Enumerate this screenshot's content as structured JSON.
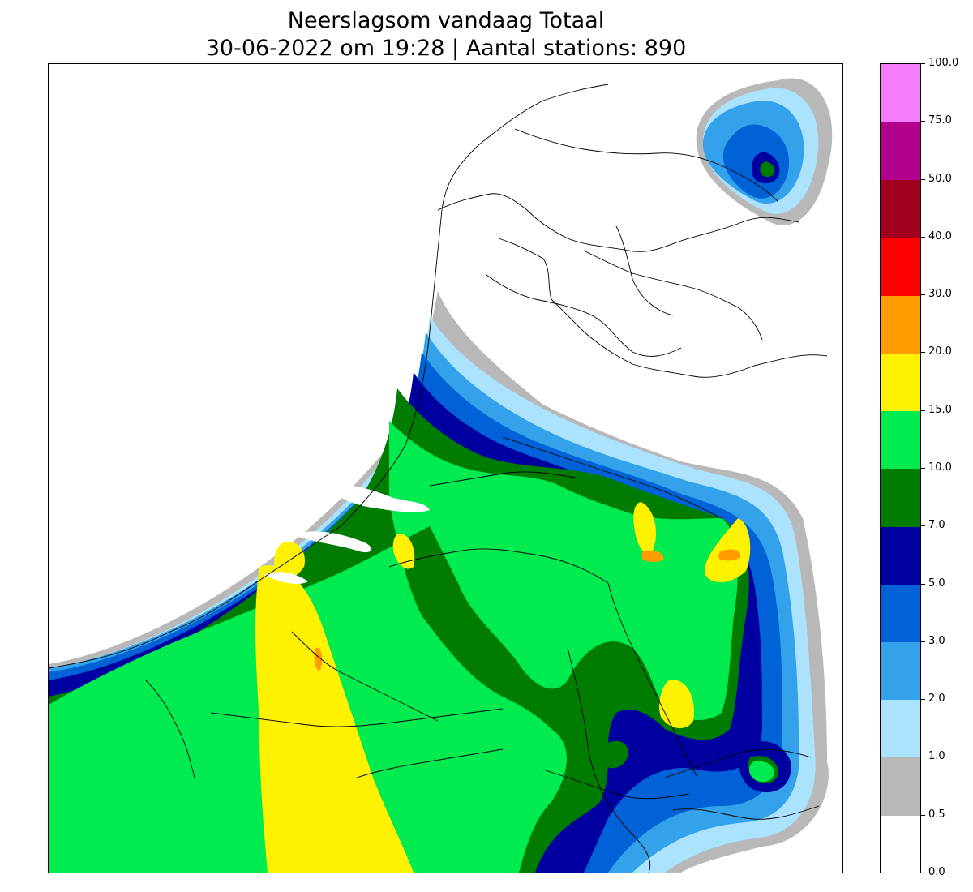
{
  "title": {
    "line1": "Neerslagsom vandaag Totaal",
    "line2": "30-06-2022 om 19:28 | Aantal stations: 890"
  },
  "legend": {
    "levels": [
      "0.0",
      "0.5",
      "1.0",
      "2.0",
      "3.0",
      "5.0",
      "7.0",
      "10.0",
      "15.0",
      "20.0",
      "30.0",
      "40.0",
      "50.0",
      "75.0",
      "100.0"
    ],
    "colors": [
      "#ffffff",
      "#b8b8b8",
      "#abe2fe",
      "#33a2ea",
      "#0062d6",
      "#0000a0",
      "#007c00",
      "#00eb4f",
      "#fff200",
      "#ff9c00",
      "#ff0000",
      "#a0001e",
      "#b2008c",
      "#f57cfa"
    ]
  },
  "map": {
    "region": "Nederland / België",
    "colors": {
      "band_1": "#b8b8b8",
      "band_2": "#abe2fe",
      "band_3": "#33a2ea",
      "band_5": "#0062d6",
      "band_7": "#0000a0",
      "band_10": "#007c00",
      "band_15": "#00eb4f",
      "band_20": "#fff200",
      "band_30": "#ff9c00",
      "border": "#000000",
      "water": "#ffffff"
    }
  }
}
